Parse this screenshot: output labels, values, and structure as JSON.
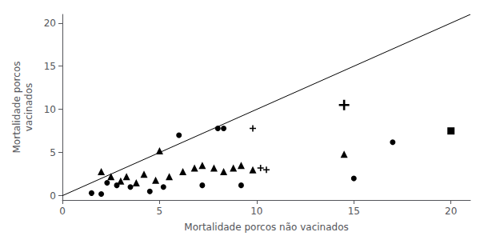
{
  "chart_data": {
    "type": "scatter",
    "xlabel": "Mortalidade porcos não vacinados",
    "ylabel": "Mortalidade porcos\nvacinados",
    "xlim": [
      0,
      21
    ],
    "ylim": [
      -0.5,
      21
    ],
    "xticks": [
      0,
      5,
      10,
      15,
      20
    ],
    "yticks": [
      0,
      5,
      10,
      15,
      20
    ],
    "grid": false,
    "series": [
      {
        "type": "line",
        "color": "#000000",
        "x": [
          0,
          21
        ],
        "values": [
          0,
          21
        ]
      },
      {
        "type": "scatter",
        "marker": "circle",
        "color": "#000000",
        "x": [
          1.5,
          2.0,
          2.3,
          2.8,
          3.5,
          4.5,
          5.2,
          6.0,
          7.2,
          8.0,
          8.3,
          9.2,
          15.0,
          17.0
        ],
        "values": [
          0.3,
          0.2,
          1.5,
          1.2,
          1.0,
          0.5,
          1.0,
          7.0,
          1.2,
          7.8,
          7.8,
          1.2,
          2.0,
          6.2
        ]
      },
      {
        "type": "scatter",
        "marker": "triangle",
        "color": "#000000",
        "x": [
          2.0,
          2.5,
          3.0,
          3.3,
          3.8,
          4.2,
          4.8,
          5.0,
          5.5,
          6.2,
          6.8,
          7.2,
          7.8,
          8.3,
          8.8,
          9.2,
          9.8,
          14.5
        ],
        "values": [
          2.8,
          2.2,
          1.7,
          2.2,
          1.5,
          2.5,
          1.8,
          5.2,
          2.2,
          2.8,
          3.2,
          3.5,
          3.2,
          2.8,
          3.2,
          3.5,
          3.0,
          4.8
        ]
      },
      {
        "type": "scatter",
        "marker": "square",
        "color": "#000000",
        "x": [
          20.0
        ],
        "values": [
          7.5
        ]
      },
      {
        "type": "scatter",
        "marker": "plus",
        "color": "#000000",
        "x": [
          14.5
        ],
        "values": [
          10.5
        ]
      },
      {
        "type": "scatter",
        "marker": "plus",
        "color": "#000000",
        "x": [
          10.2,
          10.5,
          9.8
        ],
        "values": [
          3.2,
          3.0,
          7.8
        ]
      }
    ]
  }
}
